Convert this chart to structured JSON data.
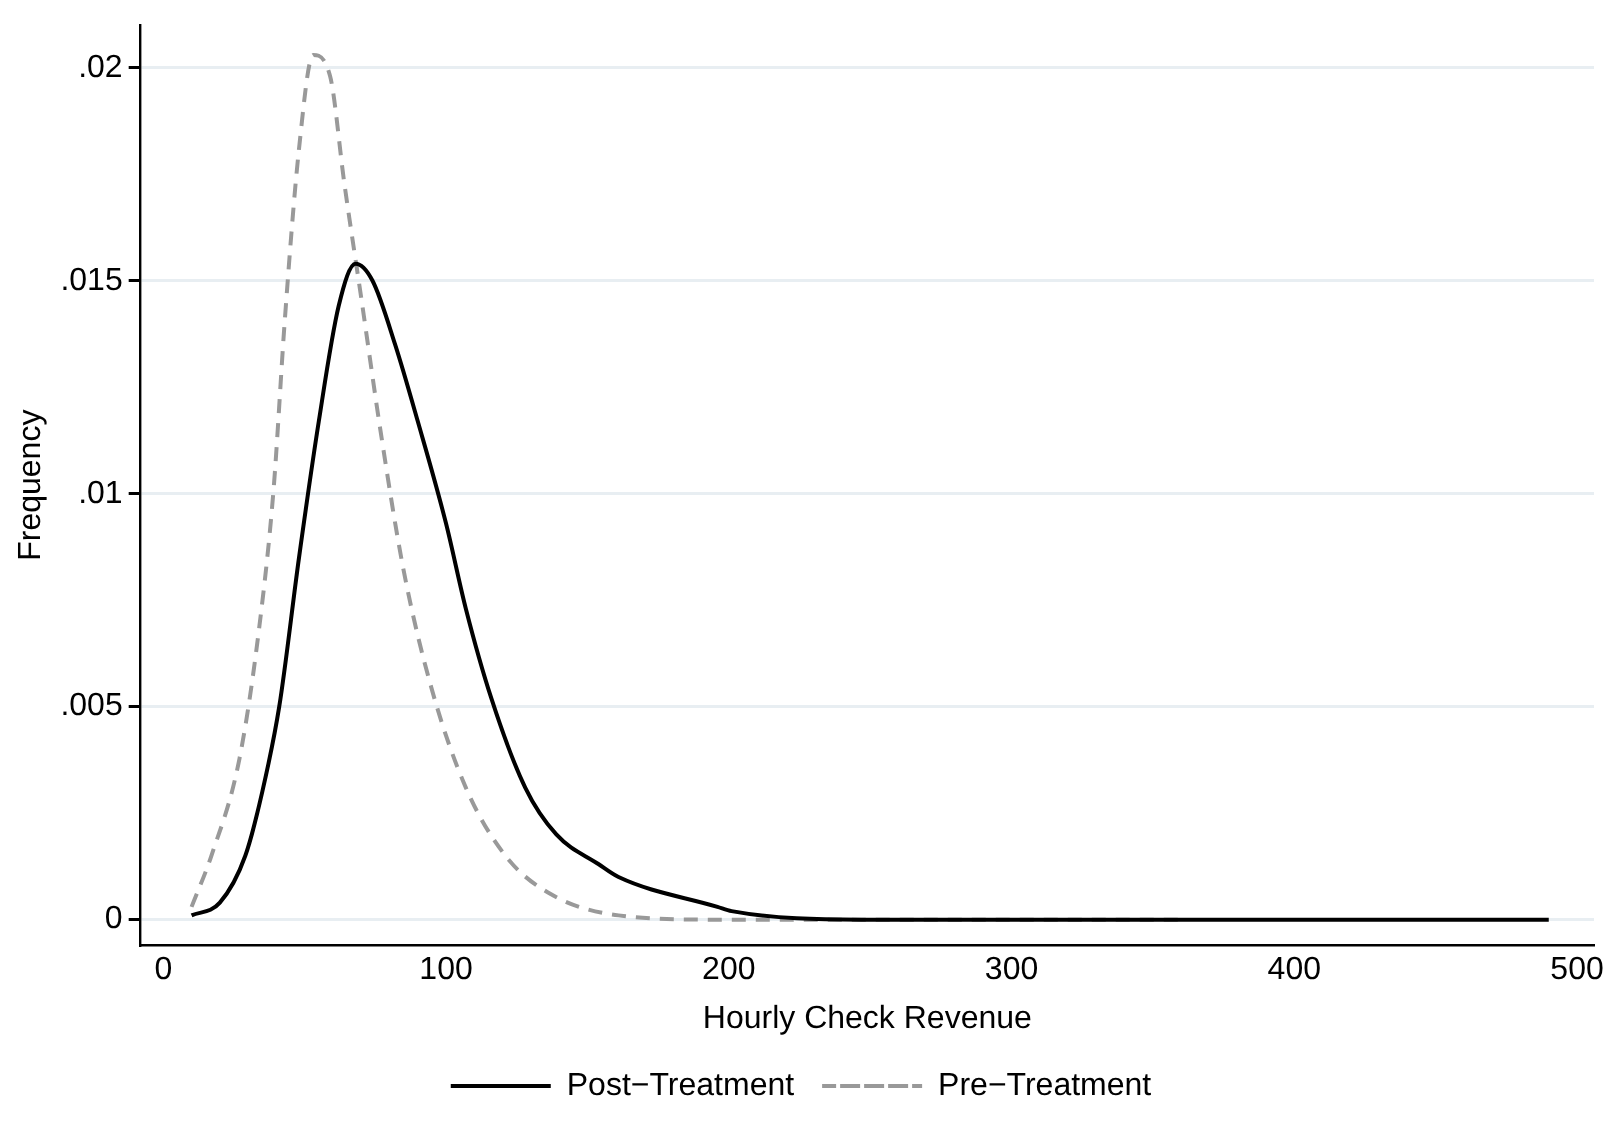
{
  "chart_data": {
    "type": "line",
    "xlabel": "Hourly Check Revenue",
    "ylabel": "Frequency",
    "xlim": [
      -8,
      506
    ],
    "xticks": [
      0,
      100,
      200,
      300,
      400,
      500
    ],
    "ylim": [
      -0.0006,
      0.021
    ],
    "yticks": [
      0,
      {
        "value": 0.005,
        "label": ".005"
      },
      {
        "value": 0.01,
        "label": ".01"
      },
      {
        "value": 0.015,
        "label": ".015"
      },
      {
        "value": 0.02,
        "label": ".02"
      }
    ],
    "grid": "y",
    "legend": "bottom",
    "marker": "none",
    "series": [
      {
        "name": "Post−Treatment",
        "color": "#000000",
        "line_style": "solid",
        "x": [
          10,
          20,
          29,
          35,
          41,
          48,
          55,
          62,
          68,
          74,
          82,
          90,
          100,
          107,
          116,
          128,
          139,
          154,
          161,
          196,
          201,
          247,
          300,
          400,
          490
        ],
        "values": [
          0.0001,
          0.0004,
          0.0015,
          0.003,
          0.005,
          0.0085,
          0.0117,
          0.0144,
          0.0154,
          0.015,
          0.0135,
          0.0117,
          0.0093,
          0.0073,
          0.0052,
          0.0031,
          0.002,
          0.0013,
          0.001,
          0.0003,
          0.0002,
          0,
          0,
          0,
          0
        ]
      },
      {
        "name": "Pre−Treatment",
        "color": "#999999",
        "line_style": "dashed",
        "x": [
          10,
          17,
          27,
          34,
          39,
          43,
          48,
          53,
          59,
          64,
          70,
          77,
          85,
          95,
          107,
          121,
          137,
          161,
          196,
          250,
          300,
          360
        ],
        "values": [
          0.0003,
          0.0015,
          0.0038,
          0.0069,
          0.0101,
          0.0141,
          0.0181,
          0.0203,
          0.0198,
          0.0173,
          0.0146,
          0.0114,
          0.0082,
          0.0054,
          0.0031,
          0.0015,
          0.0006,
          0.0001,
          0,
          0,
          0,
          0
        ]
      }
    ]
  }
}
